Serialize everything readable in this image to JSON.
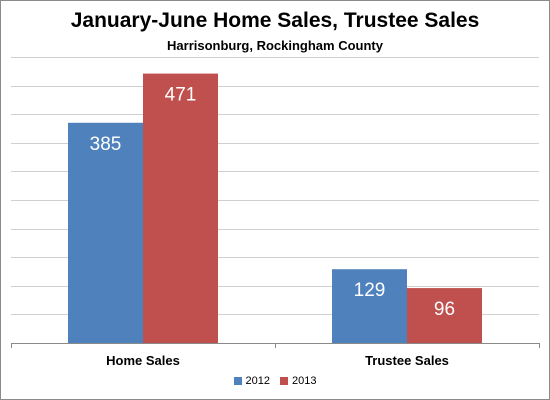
{
  "chart_data": {
    "type": "bar",
    "title": "January-June  Home Sales, Trustee Sales",
    "subtitle": "Harrisonburg, Rockingham County",
    "categories": [
      "Home Sales",
      "Trustee Sales"
    ],
    "series": [
      {
        "name": "2012",
        "values": [
          385,
          129
        ],
        "color": "#4f81bd"
      },
      {
        "name": "2013",
        "values": [
          471,
          96
        ],
        "color": "#c0504d"
      }
    ],
    "ylim": [
      0,
      500
    ],
    "ytick_step": 50,
    "grid": true,
    "xlabel": "",
    "ylabel": "",
    "legend_position": "bottom",
    "data_labels": true
  }
}
